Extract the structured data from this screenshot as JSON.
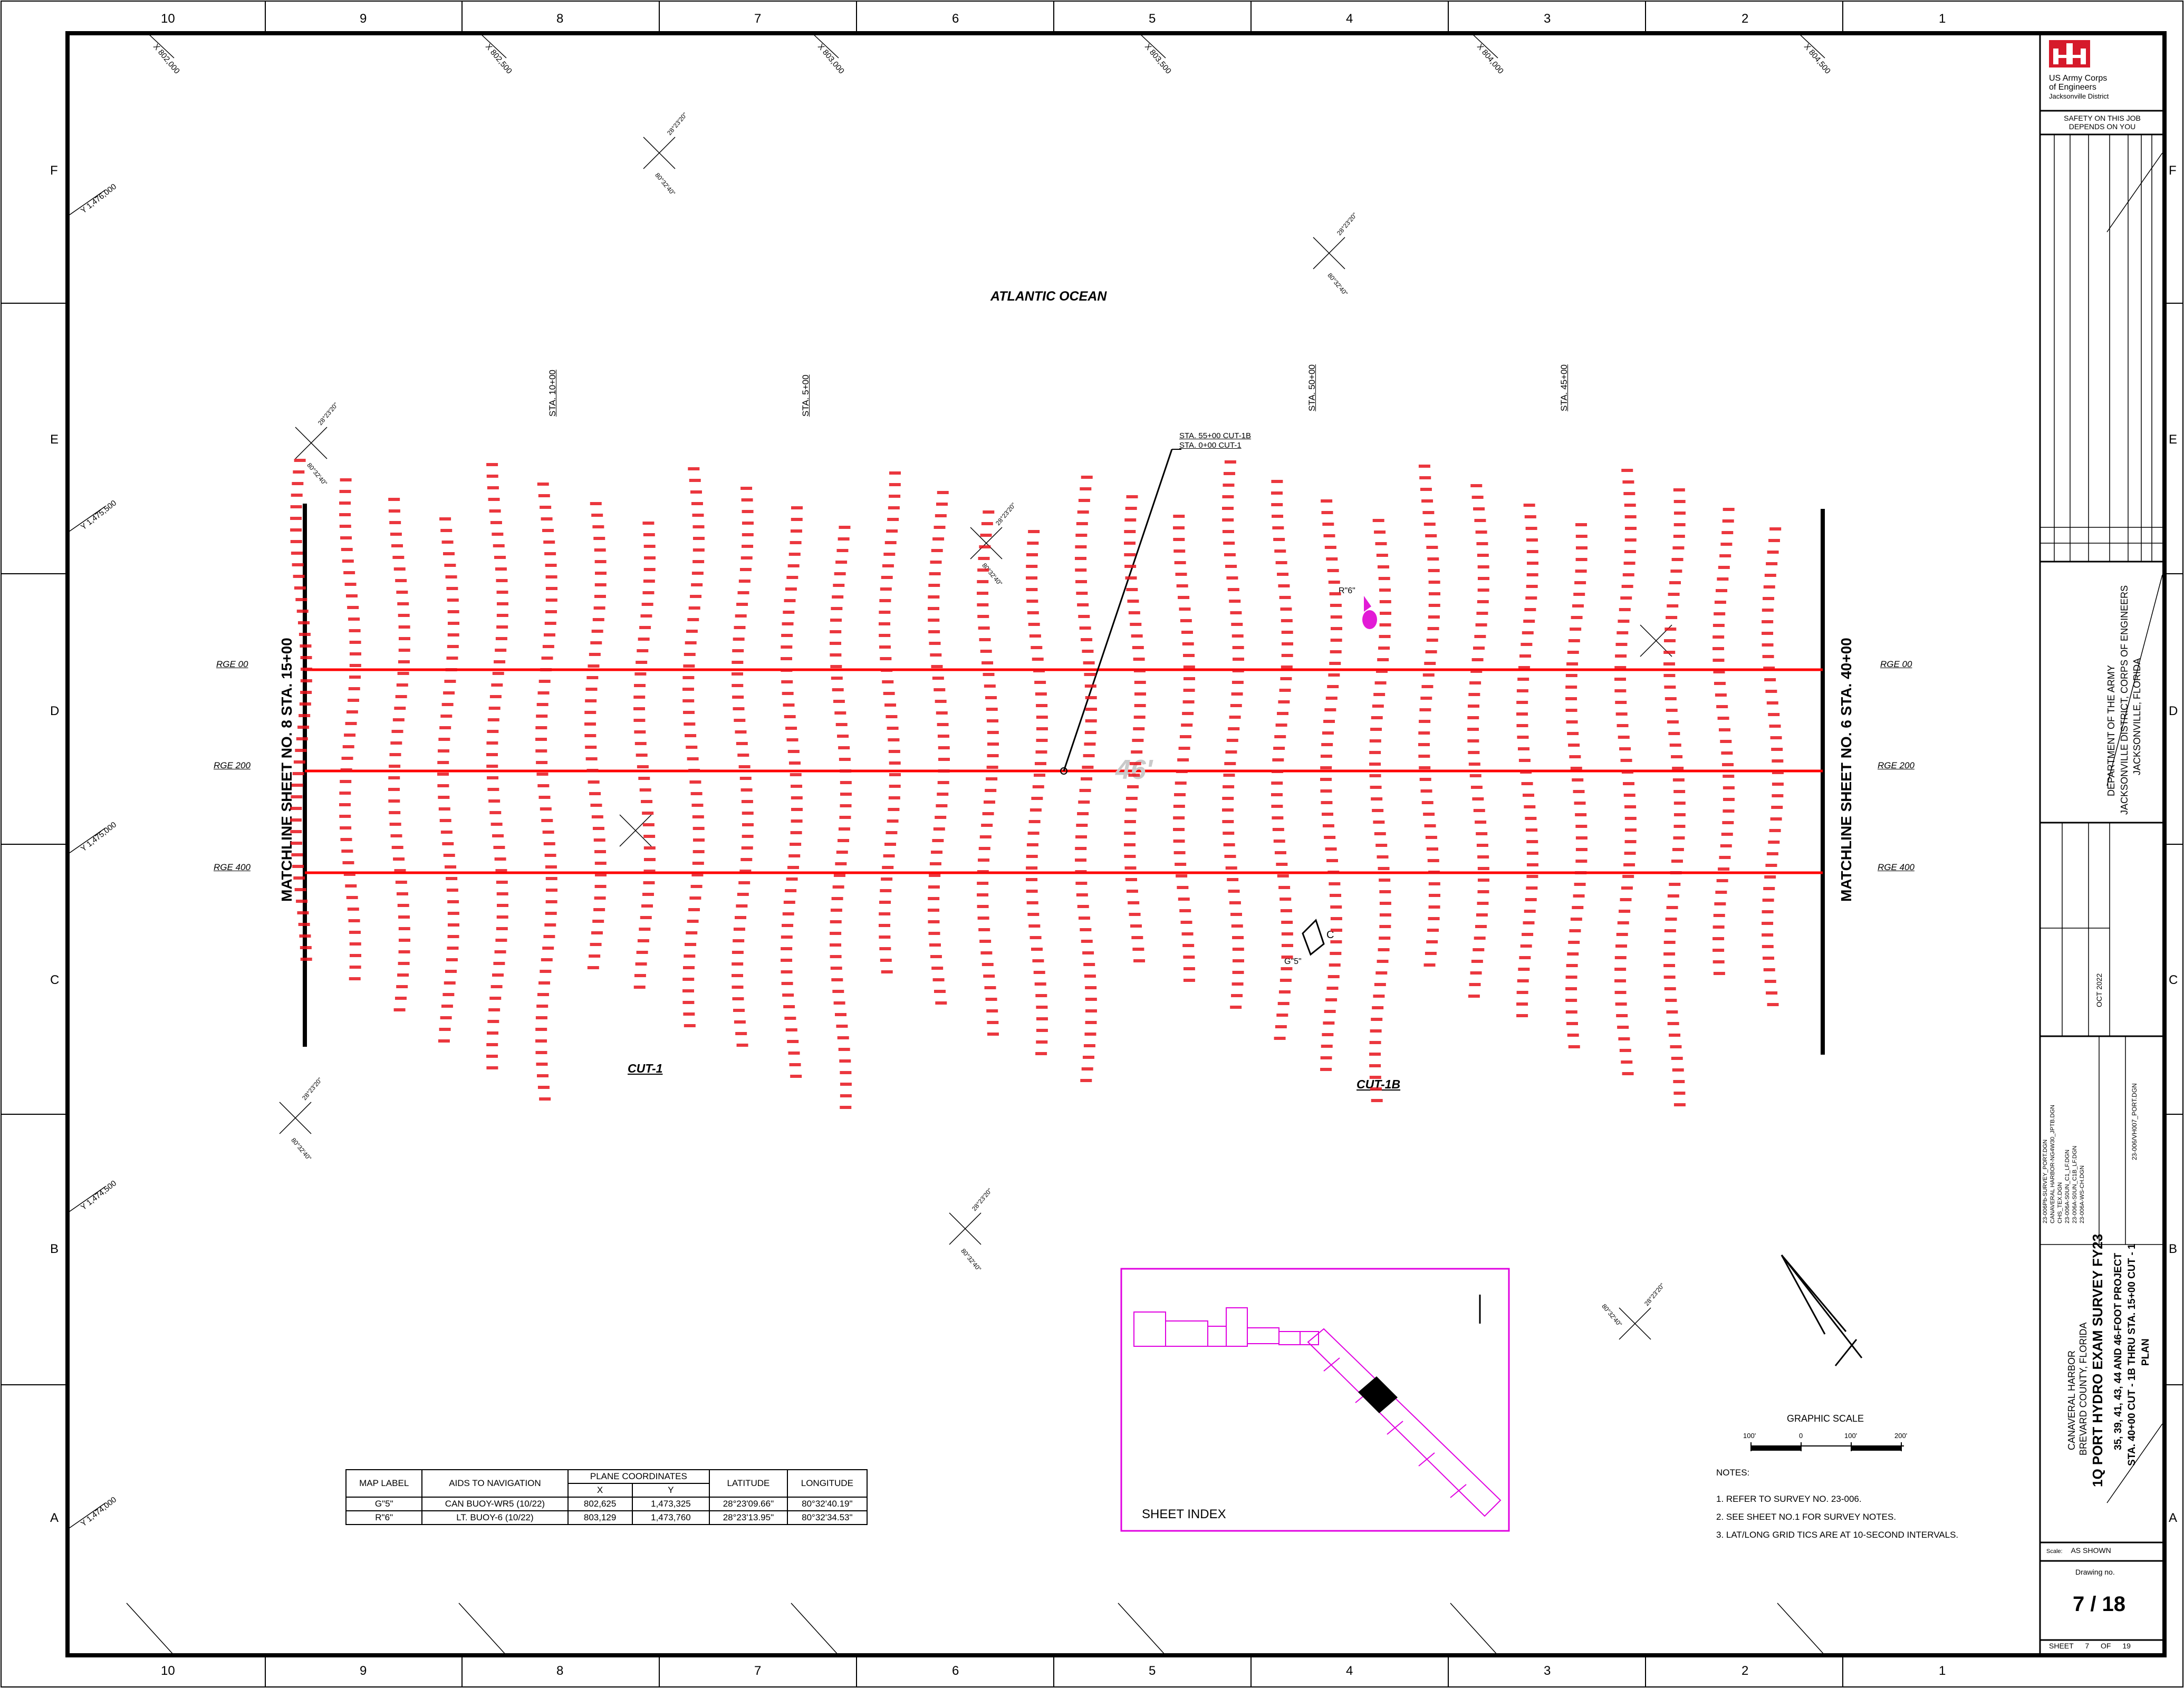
{
  "grid": {
    "columns": [
      "10",
      "9",
      "8",
      "7",
      "6",
      "5",
      "4",
      "3",
      "2",
      "1"
    ],
    "rows": [
      "F",
      "E",
      "D",
      "C",
      "B",
      "A"
    ]
  },
  "coordinates": {
    "x_ticks": [
      "X 802,000",
      "X 802,500",
      "X 803,000",
      "X 803,500",
      "X 804,000",
      "X 804,500"
    ],
    "y_ticks": [
      "Y 1,476,000",
      "Y 1,475,500",
      "Y 1,475,000",
      "Y 1,474,500",
      "Y 1,474,000"
    ],
    "lat_label": "28°23'20\"",
    "lon_label": "80°32'40\""
  },
  "plan": {
    "ocean_label": "ATLANTIC OCEAN",
    "stations": [
      "STA. 10+00",
      "STA. 5+00",
      "STA. 50+00",
      "STA. 45+00"
    ],
    "sta_callout_1": "STA. 55+00 CUT-1B",
    "sta_callout_2": "STA. 0+00 CUT-1",
    "rge_labels": [
      "RGE 00",
      "RGE 200",
      "RGE 400"
    ],
    "matchline_left": "MATCHLINE SHEET NO. 8  STA. 15+00",
    "matchline_right": "MATCHLINE SHEET NO. 6  STA. 40+00",
    "cut_labels": [
      "CUT-1",
      "CUT-1B"
    ],
    "depth_watermark": "46'",
    "buoy_r": "R\"6\"",
    "buoy_g": "G\"5\"",
    "buoy_c": "C"
  },
  "aids_table": {
    "headers": {
      "map_label": "MAP LABEL",
      "aids": "AIDS TO NAVIGATION",
      "plane": "PLANE COORDINATES",
      "x": "X",
      "y": "Y",
      "lat": "LATITUDE",
      "lon": "LONGITUDE"
    },
    "rows": [
      {
        "label": "G\"5\"",
        "aid": "CAN BUOY-WR5 (10/22)",
        "x": "802,625",
        "y": "1,473,325",
        "lat": "28°23'09.66\"",
        "lon": "80°32'40.19\""
      },
      {
        "label": "R\"6\"",
        "aid": "LT. BUOY-6 (10/22)",
        "x": "803,129",
        "y": "1,473,760",
        "lat": "28°23'13.95\"",
        "lon": "80°32'34.53\""
      }
    ]
  },
  "sheet_index": {
    "label": "SHEET INDEX"
  },
  "graphic_scale": {
    "title": "GRAPHIC SCALE",
    "ticks": [
      "100'",
      "0",
      "100'",
      "200'"
    ]
  },
  "notes": {
    "title": "NOTES:",
    "items": [
      "1.  REFER TO SURVEY NO. 23-006.",
      "2.  SEE SHEET NO.1 FOR SURVEY NOTES.",
      "3.  LAT/LONG GRID TICS ARE AT 10-SECOND INTERVALS."
    ]
  },
  "title_block": {
    "agency_line1": "US Army Corps",
    "agency_line2": "of Engineers",
    "agency_line3": "Jacksonville District",
    "safety": "SAFETY ON THIS JOB DEPENDS ON YOU",
    "department": "DEPARTMENT OF THE ARMY",
    "district": "JACKSONVILLE DISTRICT, CORPS OF ENGINEERS",
    "city": "JACKSONVILLE, FLORIDA",
    "project_line1": "CANAVERAL HARBOR",
    "project_line2": "BREVARD COUNTY, FLORIDA",
    "survey_title": "1Q PORT HYDRO EXAM SURVEY FY23",
    "project_desc": "35, 39, 41, 43, 44 AND 46-FOOT PROJECT",
    "plan_desc": "STA. 40+00 CUT - 1B THRU STA. 15+00 CUT - 1",
    "plan_word": "PLAN",
    "issue_date": "OCT 2022",
    "scale_label": "Scale:",
    "scale_value": "AS SHOWN",
    "drawing_no_label": "Drawing no.",
    "drawing_no": "7 / 18",
    "sheet_label": "SHEET",
    "sheet_no": "7",
    "of_label": "OF",
    "sheet_total": "19",
    "xref_files": [
      "23-006Pb-SURVEY_PORT.DGN",
      "CANAVERAL HARBOR-NG4W30_JPTB.DGN",
      "CHS_TEX.DGN",
      "23-006A-S0UN_C1_LF.DGN",
      "23-006A-S0UN_C1B_LF.DGN",
      "23-006A-WS-CH.DGN"
    ],
    "file_name": "23-006/VH007_PORT.DGN"
  },
  "colors": {
    "soundings": "#e8141c",
    "channel_lines": "#ff0000",
    "buoy": "#e21bd6",
    "sheet_index": "#e000e0",
    "sheet_index_labels": "#35d435",
    "logo_red": "#d61a2b"
  }
}
